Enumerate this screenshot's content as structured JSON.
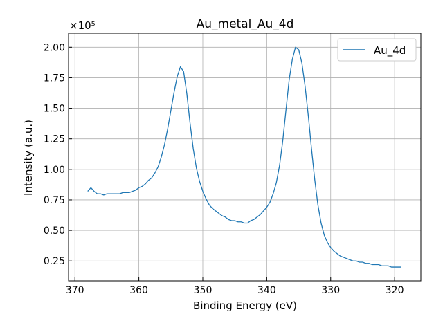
{
  "figure": {
    "background": "#ffffff"
  },
  "chart_data": {
    "type": "line",
    "title": "Au_metal_Au_4d",
    "xlabel": "Binding Energy (eV)",
    "ylabel": "Intensity (a.u.)",
    "y_multiplier_label": "×10⁵",
    "y_multiplier": 100000,
    "xlim": [
      371.0,
      315.9
    ],
    "ylim": [
      0.087,
      2.115
    ],
    "x_reversed": true,
    "xticks": [
      370,
      360,
      350,
      340,
      330,
      320
    ],
    "xtick_labels": [
      "370",
      "360",
      "350",
      "340",
      "330",
      "320"
    ],
    "yticks": [
      0.25,
      0.5,
      0.75,
      1.0,
      1.25,
      1.5,
      1.75,
      2.0
    ],
    "ytick_labels": [
      "0.25",
      "0.50",
      "0.75",
      "1.00",
      "1.25",
      "1.50",
      "1.75",
      "2.00"
    ],
    "grid": true,
    "legend": {
      "position": "upper-right"
    },
    "series": [
      {
        "name": "Au_4d",
        "color": "#1f77b4",
        "x": [
          368.0,
          367.5,
          367.0,
          366.5,
          366.0,
          365.5,
          365.0,
          364.5,
          364.0,
          363.5,
          363.0,
          362.5,
          362.0,
          361.5,
          361.0,
          360.5,
          360.0,
          359.5,
          359.0,
          358.5,
          358.0,
          357.5,
          357.0,
          356.5,
          356.0,
          355.5,
          355.0,
          354.5,
          354.0,
          353.5,
          353.0,
          352.5,
          352.0,
          351.5,
          351.0,
          350.5,
          350.0,
          349.5,
          349.0,
          348.5,
          348.0,
          347.5,
          347.0,
          346.5,
          346.0,
          345.5,
          345.0,
          344.5,
          344.0,
          343.5,
          343.0,
          342.5,
          342.0,
          341.5,
          341.0,
          340.5,
          340.0,
          339.5,
          339.0,
          338.5,
          338.0,
          337.5,
          337.0,
          336.5,
          336.0,
          335.5,
          335.0,
          334.5,
          334.0,
          333.5,
          333.0,
          332.5,
          332.0,
          331.5,
          331.0,
          330.5,
          330.0,
          329.5,
          329.0,
          328.5,
          328.0,
          327.5,
          327.0,
          326.5,
          326.0,
          325.5,
          325.0,
          324.5,
          324.0,
          323.5,
          323.0,
          322.5,
          322.0,
          321.5,
          321.0,
          320.5,
          320.0,
          319.5,
          319.0
        ],
        "values": [
          0.82,
          0.85,
          0.82,
          0.8,
          0.8,
          0.79,
          0.8,
          0.8,
          0.8,
          0.8,
          0.8,
          0.81,
          0.81,
          0.81,
          0.82,
          0.83,
          0.85,
          0.86,
          0.88,
          0.91,
          0.93,
          0.97,
          1.02,
          1.1,
          1.2,
          1.33,
          1.48,
          1.63,
          1.76,
          1.84,
          1.8,
          1.62,
          1.38,
          1.17,
          1.01,
          0.9,
          0.82,
          0.76,
          0.71,
          0.68,
          0.66,
          0.64,
          0.62,
          0.61,
          0.59,
          0.58,
          0.58,
          0.57,
          0.57,
          0.56,
          0.56,
          0.58,
          0.59,
          0.61,
          0.63,
          0.66,
          0.69,
          0.73,
          0.8,
          0.89,
          1.03,
          1.23,
          1.48,
          1.73,
          1.9,
          2.0,
          1.98,
          1.87,
          1.68,
          1.44,
          1.17,
          0.92,
          0.71,
          0.56,
          0.46,
          0.4,
          0.36,
          0.33,
          0.31,
          0.29,
          0.28,
          0.27,
          0.26,
          0.25,
          0.25,
          0.24,
          0.24,
          0.23,
          0.23,
          0.22,
          0.22,
          0.22,
          0.21,
          0.21,
          0.21,
          0.2,
          0.2,
          0.2,
          0.2
        ]
      }
    ]
  }
}
